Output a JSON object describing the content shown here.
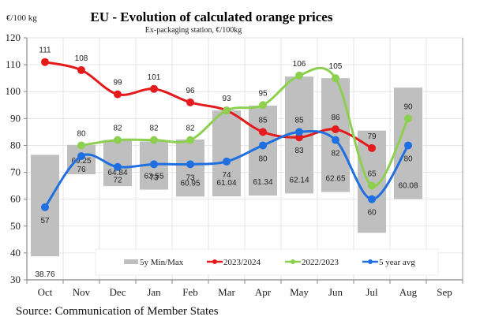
{
  "chart_data": {
    "type": "bar+line",
    "title": "EU  -  Evolution of calculated orange prices",
    "subtitle": "Ex-packaging station, €/100kg",
    "ylabel": "€/100 kg",
    "xlabel": "",
    "source": "Source: Communication of Member States",
    "ylim": [
      30,
      120
    ],
    "yticks": [
      30,
      40,
      50,
      60,
      70,
      80,
      90,
      100,
      110,
      120
    ],
    "grid": true,
    "legend_position": "bottom-inside",
    "categories": [
      "Oct",
      "Nov",
      "Dec",
      "Jan",
      "Feb",
      "Mar",
      "Apr",
      "May",
      "Jun",
      "Jul",
      "Aug",
      "Sep"
    ],
    "range_series": {
      "name": "5y Min/Max",
      "color": "#bfbfbf",
      "min": [
        38.76,
        69.25,
        64.84,
        63.55,
        60.95,
        61.04,
        61.34,
        62.14,
        62.65,
        47.5,
        60.08,
        null
      ],
      "max": [
        76.5,
        80.2,
        82.0,
        81.5,
        82.2,
        93.0,
        94.8,
        105.6,
        105.0,
        85.5,
        101.5,
        null
      ],
      "min_labels": [
        "38.76",
        "69.25",
        "64.84",
        "63.55",
        "60.95",
        "61.04",
        "61.34",
        "62.14",
        "62.65",
        "",
        "60.08",
        ""
      ]
    },
    "series": [
      {
        "name": "2023/2024",
        "color": "#e41a1c",
        "values": [
          111,
          108,
          99,
          101,
          96,
          93,
          85,
          83,
          86,
          79,
          null,
          null
        ],
        "labels": [
          "111",
          "108",
          "99",
          "101",
          "96",
          "",
          "85",
          "83",
          "86",
          "79",
          "",
          ""
        ],
        "label_pos": [
          "above",
          "above",
          "above",
          "above",
          "above",
          "above",
          "above",
          "below",
          "above",
          "above",
          "",
          ""
        ]
      },
      {
        "name": "2022/2023",
        "color": "#8dd04f",
        "values": [
          null,
          80,
          82,
          82,
          82,
          93,
          95,
          106,
          105,
          65,
          90,
          null
        ],
        "labels": [
          "",
          "80",
          "82",
          "82",
          "82",
          "93",
          "95",
          "106",
          "105",
          "65",
          "90",
          ""
        ],
        "label_pos": [
          "",
          "above",
          "above",
          "above",
          "above",
          "above",
          "above",
          "above",
          "above",
          "above",
          "above",
          ""
        ]
      },
      {
        "name": "5 year avg",
        "color": "#1f6fe0",
        "values": [
          57,
          76,
          72,
          73,
          73,
          74,
          80,
          85,
          82,
          60,
          80,
          null
        ],
        "labels": [
          "57",
          "76",
          "72",
          "73",
          "73",
          "74",
          "80",
          "85",
          "82",
          "60",
          "80",
          ""
        ],
        "label_pos": [
          "below",
          "below",
          "below",
          "below",
          "below",
          "below",
          "below",
          "above",
          "below",
          "below",
          "below",
          ""
        ]
      }
    ]
  }
}
